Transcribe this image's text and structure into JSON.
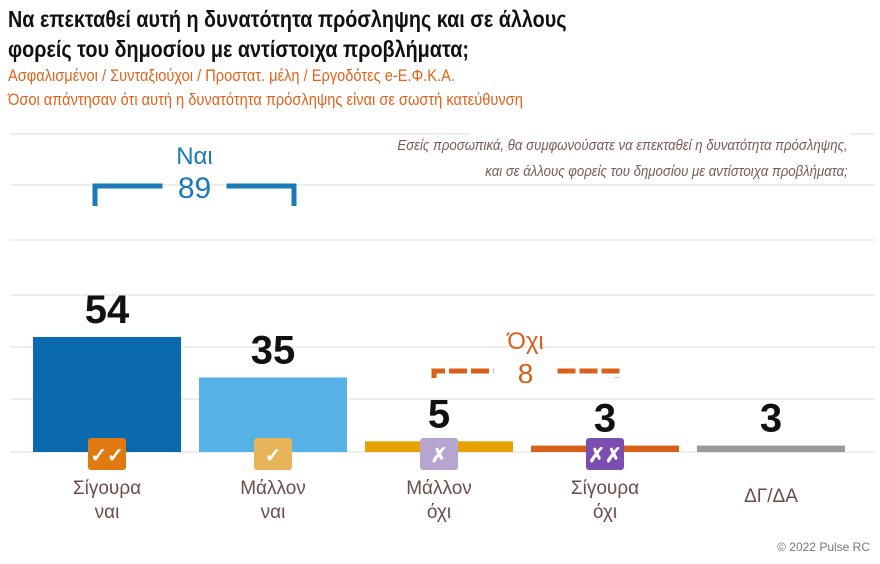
{
  "header": {
    "title_line1": "Να επεκταθεί αυτή η δυνατότητα πρόσληψης και σε άλλους",
    "title_line2": "φορείς του δημοσίου με αντίστοιχα προβλήματα;",
    "subtitle_line1": "Ασφαλισμένοι / Συνταξιούχοι / Προστατ. μέλη / Εργοδότες e-Ε.Φ.Κ.Α.",
    "subtitle_line2": "Όσοι απάντησαν ότι αυτή η δυνατότητα πρόσληψης είναι σε σωστή κατεύθυνση"
  },
  "question": {
    "line1": "Εσείς προσωπικά, θα συμφωνούσατε να επεκταθεί η δυνατότητα πρόσληψης,",
    "line2": "και σε άλλους φορείς του δημοσίου με αντίστοιχα προβλήματα;"
  },
  "footer": "© 2022 Pulse RC",
  "chart_data": {
    "type": "bar",
    "categories": [
      "Σίγουρα ναι",
      "Μάλλον ναι",
      "Μάλλον όχι",
      "Σίγουρα όχι",
      "ΔΓ/ΔΑ"
    ],
    "category_lines": [
      [
        "Σίγουρα",
        "ναι"
      ],
      [
        "Μάλλον",
        "ναι"
      ],
      [
        "Μάλλον",
        "όχι"
      ],
      [
        "Σίγουρα",
        "όχι"
      ],
      [
        "ΔΓ/ΔΑ",
        ""
      ]
    ],
    "values": [
      54,
      35,
      5,
      3,
      3
    ],
    "colors": [
      "#0a6aad",
      "#55b1e6",
      "#e6a200",
      "#d9601a",
      "#9a9a9a"
    ],
    "icons": [
      {
        "name": "double-check-icon",
        "glyph": "✓✓",
        "color": "#e07a10"
      },
      {
        "name": "check-icon",
        "glyph": "✓",
        "color": "#e8b45a"
      },
      {
        "name": "cross-icon",
        "glyph": "✗",
        "color": "#b5a5cf"
      },
      {
        "name": "double-cross-icon",
        "glyph": "✗✗",
        "color": "#7a4fb0"
      },
      null
    ],
    "groups": [
      {
        "label": "Ναι",
        "total": "89",
        "color": "#1a7ab8"
      },
      {
        "label": "Όχι",
        "total": "8",
        "color": "#d9601a"
      }
    ],
    "ylim": [
      0,
      60
    ],
    "grid": true
  }
}
